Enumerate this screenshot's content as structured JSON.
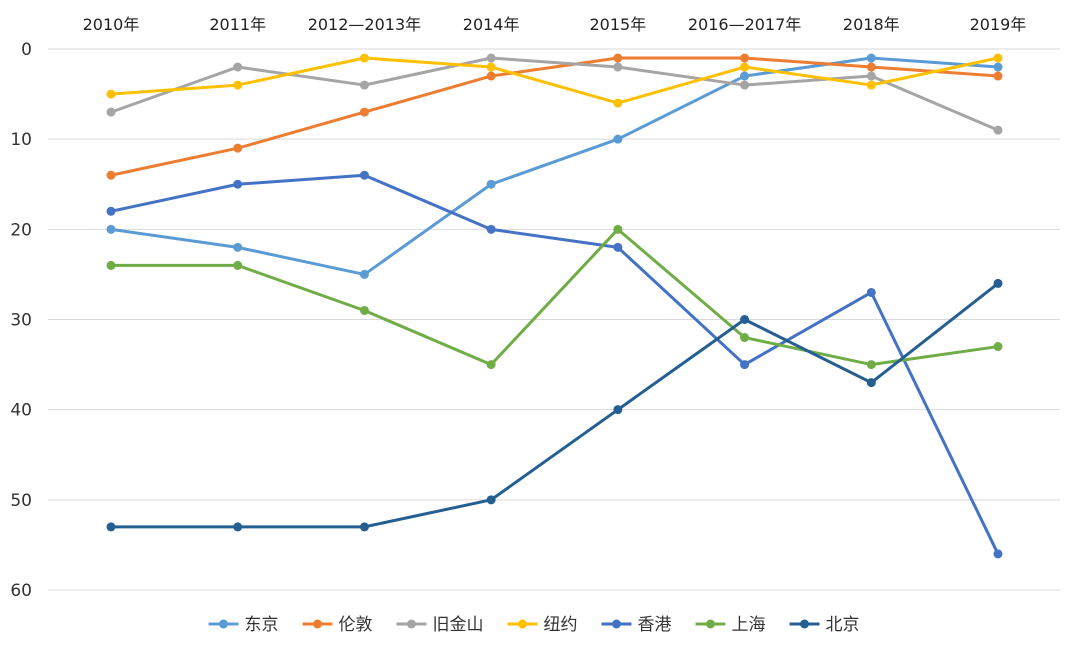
{
  "chart_data": {
    "type": "line",
    "title": "",
    "xlabel": "",
    "ylabel": "",
    "y_axis_reversed": true,
    "ylim": [
      0,
      60
    ],
    "yticks": [
      0,
      10,
      20,
      30,
      40,
      50,
      60
    ],
    "categories": [
      "2010年",
      "2011年",
      "2012—2013年",
      "2014年",
      "2015年",
      "2016—2017年",
      "2018年",
      "2019年"
    ],
    "x_axis_position": "top",
    "grid": "horizontal",
    "legend_position": "bottom",
    "series": [
      {
        "name": "东京",
        "color": "#5B9BD5",
        "values": [
          20,
          22,
          25,
          15,
          10,
          3,
          1,
          2
        ]
      },
      {
        "name": "伦敦",
        "color": "#ED7D31",
        "values": [
          14,
          11,
          7,
          3,
          1,
          1,
          2,
          3
        ]
      },
      {
        "name": "旧金山",
        "color": "#A5A5A5",
        "values": [
          7,
          2,
          4,
          1,
          2,
          4,
          3,
          9
        ]
      },
      {
        "name": "纽约",
        "color": "#FFC000",
        "values": [
          5,
          4,
          1,
          2,
          6,
          2,
          4,
          1
        ]
      },
      {
        "name": "香港",
        "color": "#4472C4",
        "values": [
          18,
          15,
          14,
          20,
          22,
          35,
          27,
          56
        ]
      },
      {
        "name": "上海",
        "color": "#70AD47",
        "values": [
          24,
          24,
          29,
          35,
          20,
          32,
          35,
          33
        ]
      },
      {
        "name": "北京",
        "color": "#255E91",
        "values": [
          53,
          53,
          53,
          50,
          40,
          30,
          37,
          26
        ]
      }
    ]
  }
}
